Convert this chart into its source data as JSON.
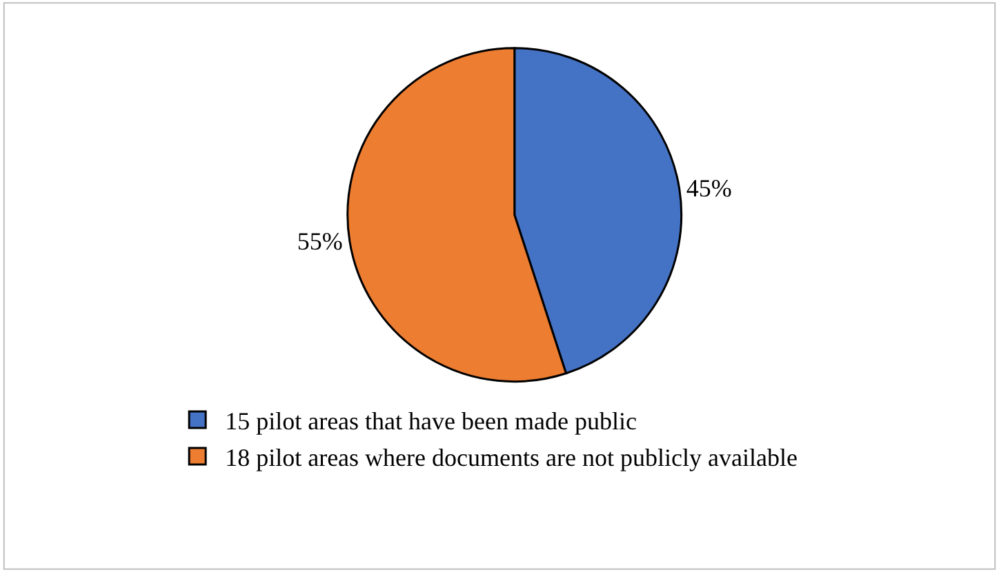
{
  "chart_data": {
    "type": "pie",
    "categories": [
      "15 pilot areas that have been made public",
      "18 pilot areas where documents are not publicly available"
    ],
    "values": [
      45,
      55
    ],
    "colors": [
      "#4472c4",
      "#ed7d31"
    ],
    "value_labels": [
      "45%",
      "55%"
    ],
    "legend": "bottom"
  }
}
